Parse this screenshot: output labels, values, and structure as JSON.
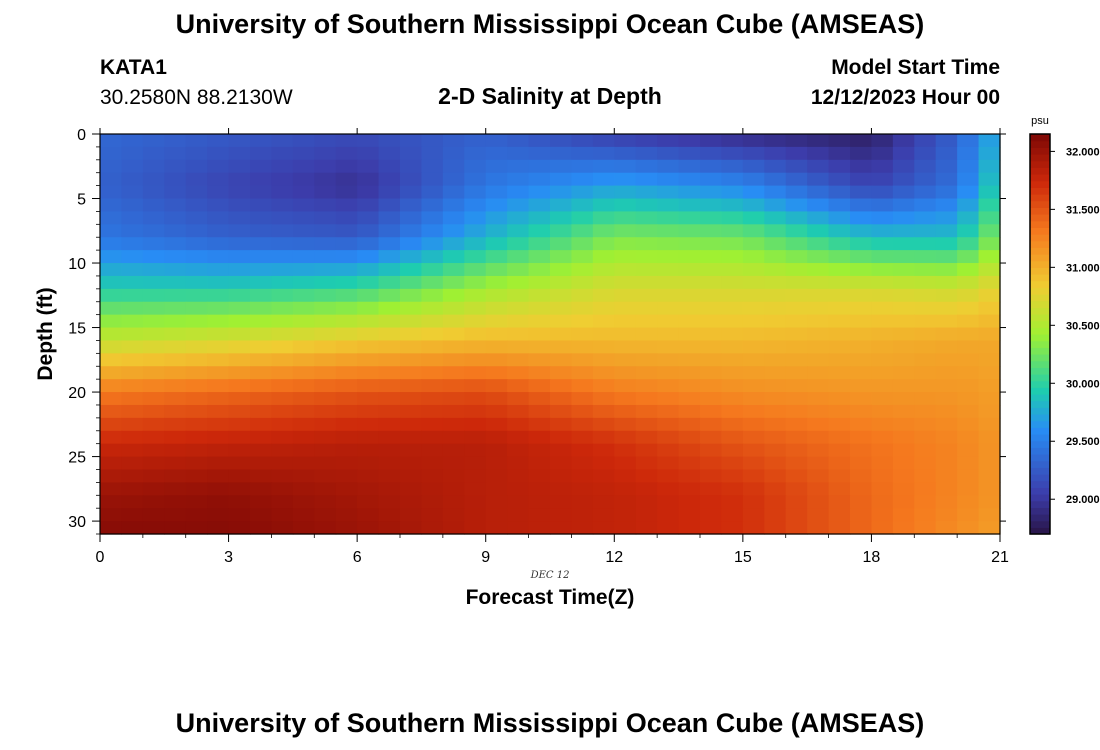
{
  "header": {
    "title": "University of Southern Mississippi Ocean Cube (AMSEAS)",
    "station": "KATA1",
    "coords": "30.2580N  88.2130W",
    "subtitle": "2-D Salinity at Depth",
    "start_label": "Model Start Time",
    "start_value": "12/12/2023 Hour 00"
  },
  "footer": {
    "title": "University of Southern Mississippi Ocean Cube (AMSEAS)"
  },
  "chart_data": {
    "type": "heatmap",
    "title": "2-D Salinity at Depth",
    "xlabel": "Forecast Time(Z)",
    "ylabel": "Depth (ft)",
    "date_annotation": "DEC 12",
    "xlim": [
      0,
      21
    ],
    "ylim": [
      0,
      31
    ],
    "y_inverted": true,
    "x_ticks": [
      0,
      3,
      6,
      9,
      12,
      15,
      18,
      21
    ],
    "y_ticks": [
      0,
      5,
      10,
      15,
      20,
      25,
      30
    ],
    "colorbar": {
      "unit": "psu",
      "min": 28.7,
      "max": 32.15,
      "ticks": [
        "29.000",
        "29.500",
        "30.000",
        "30.500",
        "31.000",
        "31.500",
        "32.000"
      ],
      "tick_values": [
        29.0,
        29.5,
        30.0,
        30.5,
        31.0,
        31.5,
        32.0
      ]
    },
    "grid": {
      "time_hours": [
        0,
        3,
        6,
        9,
        12,
        15,
        18,
        20,
        21
      ],
      "depth_ft": [
        0,
        4,
        8,
        12,
        16,
        20,
        24,
        28,
        31
      ],
      "salinity_psu": [
        [
          29.35,
          29.25,
          29.15,
          29.3,
          29.05,
          28.9,
          28.8,
          29.3,
          29.8
        ],
        [
          29.3,
          29.1,
          28.95,
          29.45,
          29.7,
          29.55,
          29.1,
          29.4,
          30.0
        ],
        [
          29.45,
          29.3,
          29.25,
          29.8,
          30.3,
          30.25,
          29.85,
          29.85,
          30.35
        ],
        [
          29.95,
          29.95,
          30.05,
          30.45,
          30.7,
          30.7,
          30.7,
          30.65,
          30.8
        ],
        [
          30.6,
          30.7,
          30.85,
          30.95,
          30.95,
          30.95,
          31.0,
          31.05,
          31.05
        ],
        [
          31.3,
          31.4,
          31.5,
          31.55,
          31.3,
          31.2,
          31.15,
          31.15,
          31.1
        ],
        [
          31.75,
          31.8,
          31.85,
          31.85,
          31.7,
          31.5,
          31.35,
          31.25,
          31.15
        ],
        [
          32.0,
          32.05,
          31.95,
          31.85,
          31.8,
          31.7,
          31.4,
          31.25,
          31.15
        ],
        [
          32.1,
          32.1,
          32.0,
          31.85,
          31.8,
          31.7,
          31.4,
          31.2,
          31.1
        ]
      ]
    }
  }
}
